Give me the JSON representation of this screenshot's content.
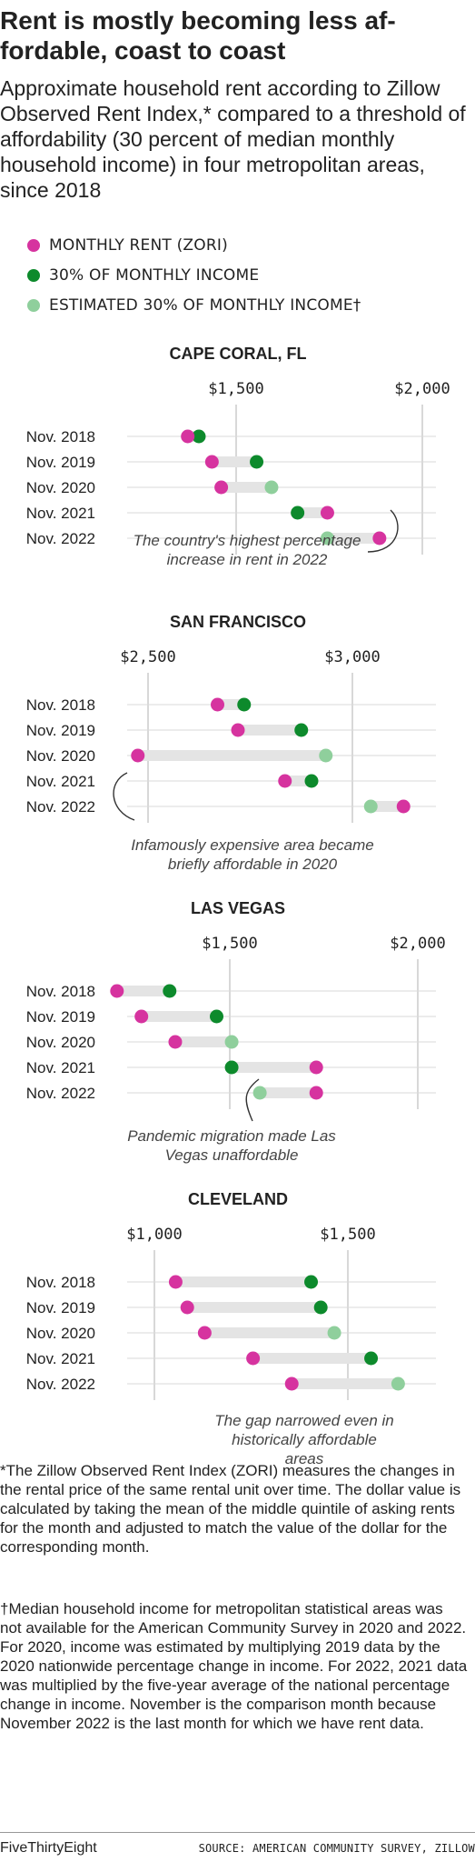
{
  "title": "Rent is mostly becoming less af-fordable, coast to coast",
  "subtitle": "Approximate household rent according to Zillow Observed Rent Index,* compared to a threshold of affordability (30 percent of median monthly household income) in four metropolitan areas, since 2018",
  "legend": {
    "rent": "MONTHLY RENT (ZORI)",
    "income": "30% OF MONTHLY INCOME",
    "estimated": "ESTIMATED 30% OF MONTHLY INCOME†"
  },
  "colors": {
    "rent": "#d6339f",
    "income": "#0d8a2c",
    "estimated": "#8fcf9c",
    "bar": "#e4e4e4",
    "grid": "#cccccc"
  },
  "chart_data": [
    {
      "type": "dumbbell",
      "title": "CAPE CORAL, FL",
      "ticks": [
        {
          "value": 1500,
          "label": "$1,500"
        },
        {
          "value": 2000,
          "label": "$2,000"
        }
      ],
      "rows": [
        {
          "label": "Nov. 2018",
          "rent": 1370,
          "income": 1400,
          "income_estimated": false
        },
        {
          "label": "Nov. 2019",
          "rent": 1435,
          "income": 1555,
          "income_estimated": false
        },
        {
          "label": "Nov. 2020",
          "rent": 1460,
          "income": 1595,
          "income_estimated": true
        },
        {
          "label": "Nov. 2021",
          "rent": 1745,
          "income": 1665,
          "income_estimated": false
        },
        {
          "label": "Nov. 2022",
          "rent": 1885,
          "income": 1745,
          "income_estimated": true
        }
      ],
      "annotation": "The country's highest percentage increase in rent in 2022"
    },
    {
      "type": "dumbbell",
      "title": "SAN FRANCISCO",
      "ticks": [
        {
          "value": 2500,
          "label": "$2,500"
        },
        {
          "value": 3000,
          "label": "$3,000"
        }
      ],
      "rows": [
        {
          "label": "Nov. 2018",
          "rent": 2670,
          "income": 2735,
          "income_estimated": false
        },
        {
          "label": "Nov. 2019",
          "rent": 2720,
          "income": 2875,
          "income_estimated": false
        },
        {
          "label": "Nov. 2020",
          "rent": 2475,
          "income": 2935,
          "income_estimated": true
        },
        {
          "label": "Nov. 2021",
          "rent": 2835,
          "income": 2900,
          "income_estimated": false
        },
        {
          "label": "Nov. 2022",
          "rent": 3125,
          "income": 3045,
          "income_estimated": true
        }
      ],
      "annotation": "Infamously expensive area became briefly affordable in 2020"
    },
    {
      "type": "dumbbell",
      "title": "LAS VEGAS",
      "ticks": [
        {
          "value": 1500,
          "label": "$1,500"
        },
        {
          "value": 2000,
          "label": "$2,000"
        }
      ],
      "rows": [
        {
          "label": "Nov. 2018",
          "rent": 1200,
          "income": 1340,
          "income_estimated": false
        },
        {
          "label": "Nov. 2019",
          "rent": 1265,
          "income": 1465,
          "income_estimated": false
        },
        {
          "label": "Nov. 2020",
          "rent": 1355,
          "income": 1505,
          "income_estimated": true
        },
        {
          "label": "Nov. 2021",
          "rent": 1730,
          "income": 1505,
          "income_estimated": false
        },
        {
          "label": "Nov. 2022",
          "rent": 1730,
          "income": 1580,
          "income_estimated": true
        }
      ],
      "annotation": "Pandemic migration made Las Vegas unaffordable"
    },
    {
      "type": "dumbbell",
      "title": "CLEVELAND",
      "ticks": [
        {
          "value": 1000,
          "label": "$1,000"
        },
        {
          "value": 1500,
          "label": "$1,500"
        }
      ],
      "rows": [
        {
          "label": "Nov. 2018",
          "rent": 1055,
          "income": 1405,
          "income_estimated": false
        },
        {
          "label": "Nov. 2019",
          "rent": 1085,
          "income": 1430,
          "income_estimated": false
        },
        {
          "label": "Nov. 2020",
          "rent": 1130,
          "income": 1465,
          "income_estimated": true
        },
        {
          "label": "Nov. 2021",
          "rent": 1255,
          "income": 1560,
          "income_estimated": false
        },
        {
          "label": "Nov. 2022",
          "rent": 1355,
          "income": 1630,
          "income_estimated": true
        }
      ],
      "annotation": "The gap narrowed even in historically affordable areas"
    }
  ],
  "footnote1": "*The Zillow Observed Rent Index (ZORI) measures the changes in the rental price of the same rental unit over time. The dollar value is calculated by taking the mean of the middle quintile of asking rents for the month and adjusted to match the value of the dollar for the corresponding month.",
  "footnote2": "†Median household income for metropolitan statistical areas was not available for the American Community Survey in 2020 and 2022. For 2020, income was estimated by multiplying 2019 data by the 2020 nationwide percentage change in income. For 2022, 2021 data was multiplied by the five-year average of the national percentage change in income. November is the comparison month because November 2022 is the last month for which we have rent data.",
  "brand": "FiveThirtyEight",
  "source": "SOURCE: AMERICAN COMMUNITY SURVEY, ZILLOW"
}
